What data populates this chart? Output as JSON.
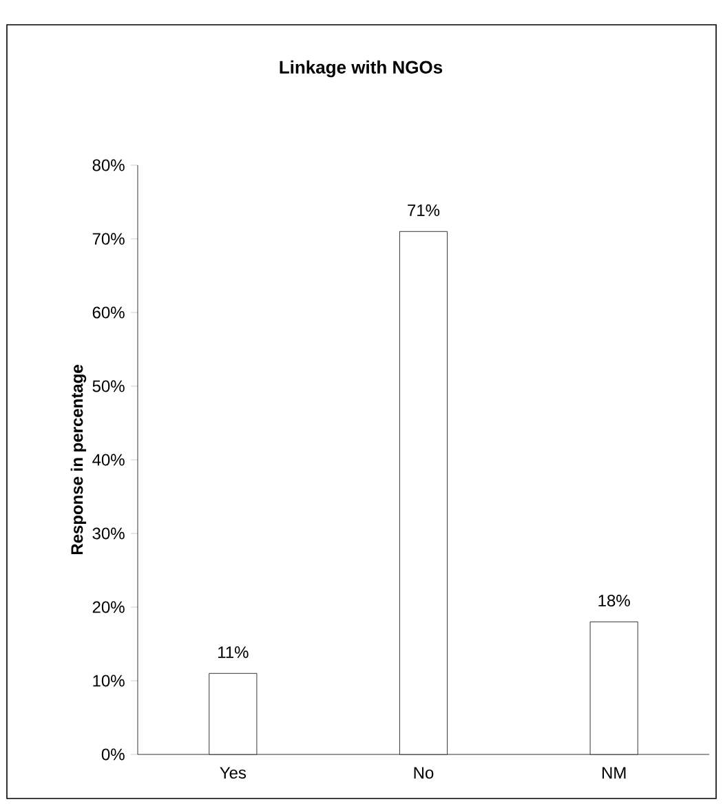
{
  "chart_data": {
    "type": "bar",
    "title": "Linkage with NGOs",
    "ylabel": "Response in percentage",
    "categories": [
      "Yes",
      "No",
      "NM"
    ],
    "values": [
      11,
      71,
      18
    ],
    "value_labels": [
      "11%",
      "71%",
      "18%"
    ],
    "color": "#ffffff",
    "ylim": [
      0,
      80
    ],
    "yticks": [
      {
        "value": 0,
        "label": "0%"
      },
      {
        "value": 10,
        "label": "10%"
      },
      {
        "value": 20,
        "label": "20%"
      },
      {
        "value": 30,
        "label": "30%"
      },
      {
        "value": 40,
        "label": "40%"
      },
      {
        "value": 50,
        "label": "50%"
      },
      {
        "value": 60,
        "label": "60%"
      },
      {
        "value": 70,
        "label": "70%"
      },
      {
        "value": 80,
        "label": "80%"
      }
    ]
  }
}
